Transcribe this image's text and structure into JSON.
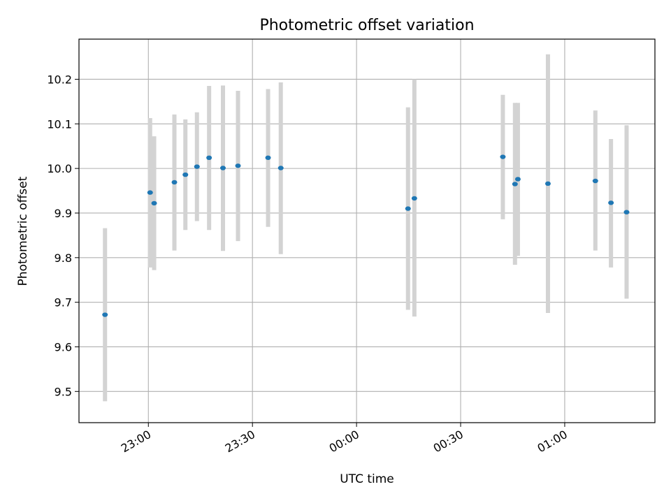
{
  "chart_data": {
    "type": "scatter",
    "title": "Photometric offset variation",
    "xlabel": "UTC time",
    "ylabel": "Photometric offset",
    "x_axis": "time",
    "xlim": [
      "22:40",
      "01:26"
    ],
    "ylim": [
      9.43,
      10.29
    ],
    "x_ticks": [
      "23:00",
      "23:30",
      "00:00",
      "00:30",
      "01:00"
    ],
    "y_ticks": [
      9.5,
      9.6,
      9.7,
      9.8,
      9.9,
      10.0,
      10.1,
      10.2
    ],
    "grid": true,
    "marker_color": "#1f77b4",
    "errorbar_color": "#d3d3d3",
    "points": [
      {
        "t": "22:47:30",
        "y": 9.672,
        "lo": 9.478,
        "hi": 9.866
      },
      {
        "t": "23:00:30",
        "y": 9.946,
        "lo": 9.778,
        "hi": 10.113
      },
      {
        "t": "23:01:40",
        "y": 9.922,
        "lo": 9.772,
        "hi": 10.072
      },
      {
        "t": "23:07:30",
        "y": 9.969,
        "lo": 9.816,
        "hi": 10.121
      },
      {
        "t": "23:10:40",
        "y": 9.986,
        "lo": 9.862,
        "hi": 10.11
      },
      {
        "t": "23:14:00",
        "y": 10.004,
        "lo": 9.882,
        "hi": 10.126
      },
      {
        "t": "23:17:30",
        "y": 10.024,
        "lo": 9.862,
        "hi": 10.185
      },
      {
        "t": "23:21:30",
        "y": 10.001,
        "lo": 9.815,
        "hi": 10.186
      },
      {
        "t": "23:25:50",
        "y": 10.006,
        "lo": 9.837,
        "hi": 10.174
      },
      {
        "t": "23:34:30",
        "y": 10.024,
        "lo": 9.869,
        "hi": 10.178
      },
      {
        "t": "23:38:10",
        "y": 10.001,
        "lo": 9.808,
        "hi": 10.193
      },
      {
        "t": "00:14:50",
        "y": 9.91,
        "lo": 9.683,
        "hi": 10.137
      },
      {
        "t": "00:16:40",
        "y": 9.933,
        "lo": 9.668,
        "hi": 10.2
      },
      {
        "t": "00:42:10",
        "y": 10.026,
        "lo": 9.886,
        "hi": 10.165
      },
      {
        "t": "00:45:40",
        "y": 9.965,
        "lo": 9.784,
        "hi": 10.147
      },
      {
        "t": "00:46:30",
        "y": 9.976,
        "lo": 9.804,
        "hi": 10.147
      },
      {
        "t": "00:55:10",
        "y": 9.966,
        "lo": 9.676,
        "hi": 10.256
      },
      {
        "t": "01:08:50",
        "y": 9.972,
        "lo": 9.816,
        "hi": 10.13
      },
      {
        "t": "01:13:20",
        "y": 9.923,
        "lo": 9.778,
        "hi": 10.066
      },
      {
        "t": "01:17:50",
        "y": 9.902,
        "lo": 9.708,
        "hi": 10.097
      }
    ]
  }
}
